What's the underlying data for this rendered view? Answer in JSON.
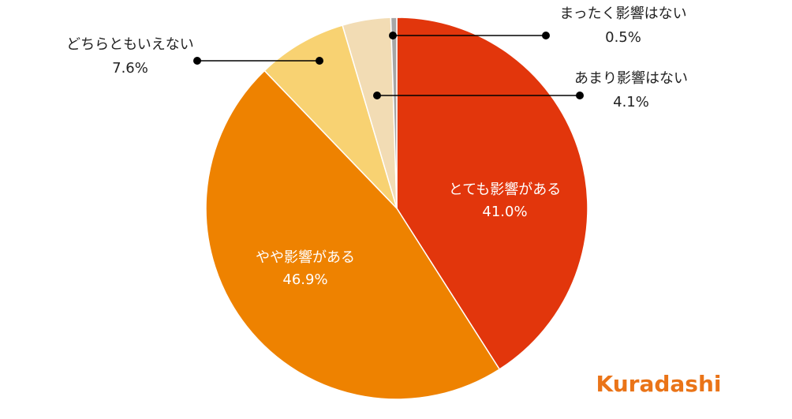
{
  "chart_data": {
    "type": "pie",
    "categories": [
      "とても影響がある",
      "やや影響がある",
      "どちらともいえない",
      "あまり影響はない",
      "まったく影響はない"
    ],
    "values": [
      41.0,
      46.9,
      7.6,
      4.1,
      0.5
    ],
    "value_labels": [
      "41.0%",
      "46.9%",
      "7.6%",
      "4.1%",
      "0.5%"
    ],
    "colors": [
      "#e2360c",
      "#ee8200",
      "#f8d272",
      "#f2dcb4",
      "#a6a6a6"
    ]
  },
  "logo": "Kuradashi"
}
